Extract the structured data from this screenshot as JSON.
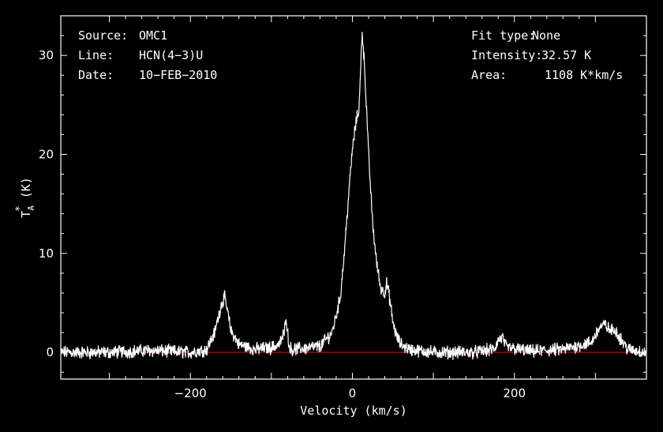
{
  "chart_data": {
    "type": "line",
    "xlabel": "Velocity (km/s)",
    "ylabel": "T*A (K)",
    "xlim": [
      -360,
      363
    ],
    "ylim": [
      -2.7,
      34.0
    ],
    "x_ticks": [
      -200,
      0,
      200
    ],
    "y_ticks": [
      0,
      10,
      20,
      30
    ],
    "x_tick_labels": [
      "−200",
      "0",
      "200"
    ],
    "y_tick_labels": [
      "0",
      "10",
      "20",
      "30"
    ],
    "grid": false,
    "baseline": {
      "value": 0,
      "color": "#cc0000"
    },
    "series": [
      {
        "x": [
          -360,
          -300,
          -250,
          -200,
          -180,
          -170,
          -162,
          -158,
          -155,
          -150,
          -140,
          -120,
          -100,
          -90,
          -84,
          -82,
          -80,
          -78,
          -75,
          -60,
          -40,
          -25,
          -15,
          -10,
          -5,
          0,
          5,
          8,
          10,
          12,
          15,
          20,
          25,
          30,
          35,
          40,
          42,
          45,
          50,
          55,
          60,
          70,
          100,
          150,
          175,
          180,
          185,
          190,
          220,
          260,
          295,
          305,
          312,
          318,
          325,
          330,
          340,
          363
        ],
        "y": [
          0.0,
          0.0,
          0.2,
          0.0,
          0.3,
          2.0,
          4.8,
          5.6,
          4.5,
          2.2,
          0.8,
          0.3,
          0.5,
          0.8,
          2.0,
          3.8,
          2.0,
          0.6,
          0.3,
          0.4,
          0.6,
          2.0,
          5.5,
          10.0,
          15.5,
          20.5,
          23.5,
          24.5,
          28.0,
          32.57,
          29.0,
          20.0,
          13.0,
          9.0,
          6.5,
          6.0,
          7.0,
          6.0,
          3.0,
          1.5,
          0.8,
          0.3,
          0.0,
          0.0,
          0.3,
          1.2,
          1.5,
          0.5,
          0.1,
          0.3,
          1.0,
          2.5,
          2.8,
          2.2,
          2.3,
          1.5,
          0.3,
          0.0
        ],
        "color": "#ffffff"
      }
    ]
  },
  "annotations": {
    "source_label": "Source:",
    "source_value": "OMC1",
    "line_label": "Line:",
    "line_value": "HCN(4−3)U",
    "date_label": "Date:",
    "date_value": "10−FEB−2010",
    "fit_label": "Fit type:",
    "fit_value": "None",
    "intensity_label": "Intensity:",
    "intensity_value": "32.57 K",
    "area_label": "Area:",
    "area_value": "1108 K*km/s"
  }
}
